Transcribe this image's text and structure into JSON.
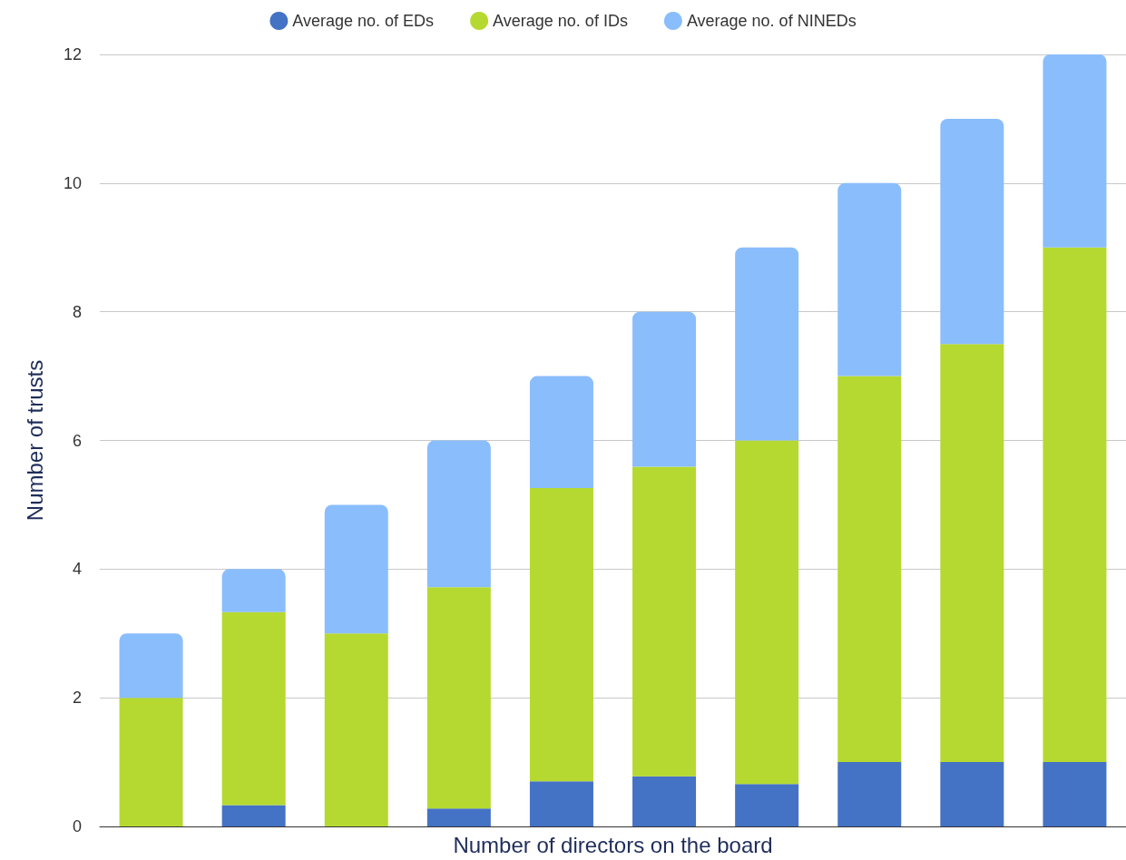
{
  "chart_data": {
    "type": "bar",
    "stacked": true,
    "xlabel": "Number of directors on the board",
    "ylabel": "Number of trusts",
    "categories": [
      null,
      null,
      null,
      null,
      null,
      null,
      null,
      null,
      null,
      null
    ],
    "series": [
      {
        "name": "Average no. of EDs",
        "color": "#4472c4",
        "values": [
          0,
          0.33,
          0,
          0.28,
          0.7,
          0.78,
          0.66,
          1,
          1,
          1
        ]
      },
      {
        "name": "Average no. of IDs",
        "color": "#b5d930",
        "values": [
          2,
          3,
          3,
          3.44,
          4.56,
          4.81,
          5.34,
          6,
          6.5,
          8
        ]
      },
      {
        "name": "Average no. of NINEDs",
        "color": "#8abdfc",
        "values": [
          1,
          0.67,
          2,
          2.28,
          1.74,
          2.41,
          3,
          3,
          3.5,
          3
        ]
      }
    ],
    "ylim": [
      0,
      12
    ],
    "yticks": [
      0,
      2,
      4,
      6,
      8,
      10,
      12
    ],
    "grid": "y",
    "legend": "top",
    "tick_labels": "y"
  }
}
